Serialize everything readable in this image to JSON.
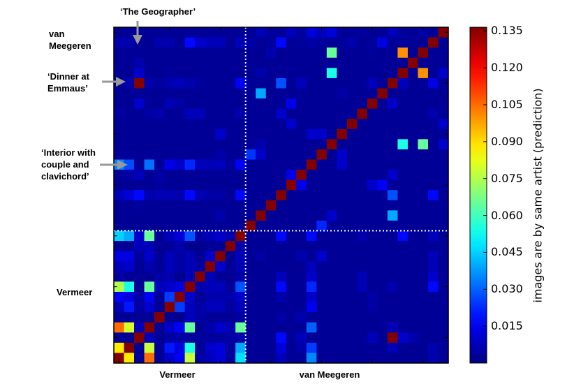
{
  "chart_data": {
    "type": "heatmap",
    "title": "",
    "colormap": "jet",
    "vmin": 0,
    "vmax": 0.1365,
    "grid": false,
    "vermeer_count": 13,
    "van_meegeren_count": 20,
    "row_group_labels": {
      "top": "van Meegeren",
      "bottom": "Vermeer"
    },
    "x_group_labels": [
      "Vermeer",
      "van Meegeren"
    ],
    "annotations": {
      "geographer": "‘The Geographer’",
      "dinner": "‘Dinner at Emmaus’",
      "interior": "‘Interior with couple and clavichord’"
    },
    "colorbar": {
      "label": "images are by same artist (prediction)",
      "ticks": [
        "0.015",
        "0.030",
        "0.045",
        "0.060",
        "0.075",
        "0.090",
        "0.105",
        "0.120",
        "0.135"
      ],
      "position": "right"
    },
    "values": [
      [
        0.003,
        0.003,
        0.003,
        0.003,
        0.003,
        0.003,
        0.003,
        0.003,
        0.003,
        0.003,
        0.003,
        0.003,
        0.003,
        0.003,
        0.007,
        0.004,
        0.003,
        0.008,
        0.004,
        0.012,
        0.008,
        0.012,
        0.003,
        0.003,
        0.004,
        0.003,
        0.003,
        0.008,
        0.004,
        0.003,
        0.005,
        0.003,
        0.136
      ],
      [
        0.006,
        0.006,
        0.003,
        0.003,
        0.006,
        0.006,
        0.003,
        0.018,
        0.01,
        0.008,
        0.008,
        0.003,
        0.008,
        0.005,
        0.003,
        0.004,
        0.018,
        0.003,
        0.004,
        0.005,
        0.004,
        0.003,
        0.004,
        0.006,
        0.003,
        0.004,
        0.013,
        0.003,
        0.004,
        0.003,
        0.003,
        0.136,
        0.003
      ],
      [
        0.003,
        0.003,
        0.003,
        0.003,
        0.003,
        0.003,
        0.003,
        0.003,
        0.003,
        0.003,
        0.003,
        0.003,
        0.003,
        0.003,
        0.003,
        0.006,
        0.003,
        0.003,
        0.003,
        0.003,
        0.003,
        0.065,
        0.003,
        0.003,
        0.003,
        0.004,
        0.003,
        0.003,
        0.1,
        0.003,
        0.136,
        0.003,
        0.003
      ],
      [
        0.003,
        0.003,
        0.006,
        0.003,
        0.003,
        0.003,
        0.003,
        0.003,
        0.003,
        0.003,
        0.003,
        0.003,
        0.003,
        0.003,
        0.003,
        0.003,
        0.003,
        0.003,
        0.003,
        0.003,
        0.003,
        0.003,
        0.003,
        0.003,
        0.003,
        0.003,
        0.003,
        0.003,
        0.003,
        0.136,
        0.003,
        0.003,
        0.003
      ],
      [
        0.003,
        0.003,
        0.01,
        0.003,
        0.003,
        0.004,
        0.003,
        0.003,
        0.003,
        0.003,
        0.003,
        0.003,
        0.003,
        0.003,
        0.006,
        0.003,
        0.003,
        0.003,
        0.003,
        0.003,
        0.003,
        0.055,
        0.003,
        0.003,
        0.003,
        0.003,
        0.003,
        0.003,
        0.136,
        0.003,
        0.1,
        0.003,
        0.01
      ],
      [
        0.003,
        0.006,
        0.136,
        0.006,
        0.004,
        0.006,
        0.008,
        0.006,
        0.004,
        0.003,
        0.003,
        0.003,
        0.016,
        0.003,
        0.003,
        0.003,
        0.028,
        0.003,
        0.008,
        0.003,
        0.003,
        0.003,
        0.003,
        0.003,
        0.003,
        0.008,
        0.003,
        0.136,
        0.008,
        0.003,
        0.003,
        0.013,
        0.003
      ],
      [
        0.003,
        0.003,
        0.003,
        0.003,
        0.003,
        0.003,
        0.003,
        0.003,
        0.003,
        0.003,
        0.003,
        0.003,
        0.003,
        0.003,
        0.04,
        0.003,
        0.003,
        0.003,
        0.003,
        0.003,
        0.003,
        0.003,
        0.005,
        0.003,
        0.003,
        0.003,
        0.136,
        0.003,
        0.003,
        0.003,
        0.003,
        0.003,
        0.003
      ],
      [
        0.003,
        0.003,
        0.01,
        0.003,
        0.003,
        0.007,
        0.005,
        0.003,
        0.003,
        0.003,
        0.003,
        0.003,
        0.003,
        0.003,
        0.003,
        0.003,
        0.003,
        0.014,
        0.003,
        0.003,
        0.003,
        0.003,
        0.003,
        0.003,
        0.003,
        0.136,
        0.003,
        0.01,
        0.003,
        0.003,
        0.003,
        0.003,
        0.003
      ],
      [
        0.005,
        0.003,
        0.003,
        0.005,
        0.006,
        0.003,
        0.003,
        0.008,
        0.008,
        0.003,
        0.003,
        0.003,
        0.006,
        0.003,
        0.003,
        0.003,
        0.01,
        0.003,
        0.003,
        0.003,
        0.003,
        0.003,
        0.003,
        0.003,
        0.136,
        0.003,
        0.003,
        0.003,
        0.003,
        0.003,
        0.003,
        0.006,
        0.003
      ],
      [
        0.003,
        0.003,
        0.003,
        0.003,
        0.003,
        0.003,
        0.003,
        0.003,
        0.003,
        0.003,
        0.003,
        0.003,
        0.003,
        0.003,
        0.003,
        0.003,
        0.003,
        0.01,
        0.003,
        0.003,
        0.003,
        0.003,
        0.003,
        0.136,
        0.003,
        0.003,
        0.003,
        0.003,
        0.003,
        0.003,
        0.003,
        0.003,
        0.01
      ],
      [
        0.003,
        0.003,
        0.003,
        0.003,
        0.003,
        0.003,
        0.003,
        0.003,
        0.003,
        0.003,
        0.01,
        0.003,
        0.003,
        0.003,
        0.003,
        0.003,
        0.003,
        0.003,
        0.003,
        0.01,
        0.01,
        0.003,
        0.136,
        0.003,
        0.003,
        0.003,
        0.003,
        0.003,
        0.003,
        0.003,
        0.003,
        0.003,
        0.003
      ],
      [
        0.003,
        0.003,
        0.003,
        0.003,
        0.003,
        0.003,
        0.003,
        0.003,
        0.003,
        0.003,
        0.003,
        0.003,
        0.003,
        0.003,
        0.006,
        0.003,
        0.003,
        0.003,
        0.003,
        0.003,
        0.003,
        0.136,
        0.003,
        0.003,
        0.003,
        0.003,
        0.003,
        0.003,
        0.055,
        0.003,
        0.065,
        0.003,
        0.01
      ],
      [
        0.003,
        0.003,
        0.003,
        0.003,
        0.003,
        0.003,
        0.003,
        0.003,
        0.003,
        0.003,
        0.005,
        0.003,
        0.003,
        0.024,
        0.01,
        0.003,
        0.003,
        0.003,
        0.003,
        0.003,
        0.136,
        0.003,
        0.01,
        0.003,
        0.003,
        0.003,
        0.003,
        0.003,
        0.003,
        0.003,
        0.003,
        0.003,
        0.003
      ],
      [
        0.035,
        0.027,
        0.003,
        0.032,
        0.003,
        0.014,
        0.01,
        0.022,
        0.008,
        0.007,
        0.008,
        0.004,
        0.016,
        0.003,
        0.003,
        0.003,
        0.003,
        0.003,
        0.003,
        0.136,
        0.003,
        0.003,
        0.01,
        0.003,
        0.003,
        0.003,
        0.003,
        0.003,
        0.003,
        0.003,
        0.003,
        0.003,
        0.003
      ],
      [
        0.003,
        0.005,
        0.008,
        0.003,
        0.005,
        0.003,
        0.003,
        0.003,
        0.003,
        0.003,
        0.003,
        0.003,
        0.003,
        0.003,
        0.003,
        0.003,
        0.003,
        0.014,
        0.136,
        0.003,
        0.003,
        0.003,
        0.003,
        0.003,
        0.003,
        0.003,
        0.003,
        0.01,
        0.003,
        0.003,
        0.003,
        0.003,
        0.003
      ],
      [
        0.003,
        0.003,
        0.003,
        0.003,
        0.004,
        0.003,
        0.003,
        0.003,
        0.003,
        0.003,
        0.003,
        0.003,
        0.003,
        0.003,
        0.003,
        0.003,
        0.003,
        0.136,
        0.014,
        0.003,
        0.003,
        0.003,
        0.003,
        0.003,
        0.003,
        0.01,
        0.016,
        0.003,
        0.003,
        0.003,
        0.003,
        0.003,
        0.003
      ],
      [
        0.008,
        0.012,
        0.018,
        0.006,
        0.007,
        0.007,
        0.006,
        0.018,
        0.007,
        0.005,
        0.005,
        0.003,
        0.018,
        0.003,
        0.003,
        0.003,
        0.136,
        0.003,
        0.003,
        0.003,
        0.003,
        0.003,
        0.003,
        0.003,
        0.003,
        0.003,
        0.003,
        0.028,
        0.003,
        0.003,
        0.003,
        0.018,
        0.003
      ],
      [
        0.003,
        0.003,
        0.004,
        0.003,
        0.003,
        0.003,
        0.003,
        0.003,
        0.003,
        0.003,
        0.003,
        0.003,
        0.003,
        0.003,
        0.003,
        0.136,
        0.003,
        0.003,
        0.003,
        0.003,
        0.003,
        0.003,
        0.003,
        0.003,
        0.003,
        0.003,
        0.003,
        0.003,
        0.003,
        0.003,
        0.003,
        0.003,
        0.003
      ],
      [
        0.003,
        0.003,
        0.003,
        0.003,
        0.003,
        0.003,
        0.003,
        0.003,
        0.003,
        0.003,
        0.006,
        0.003,
        0.003,
        0.003,
        0.136,
        0.003,
        0.003,
        0.003,
        0.003,
        0.003,
        0.003,
        0.01,
        0.003,
        0.003,
        0.003,
        0.003,
        0.003,
        0.04,
        0.003,
        0.003,
        0.003,
        0.003,
        0.003
      ],
      [
        0.003,
        0.003,
        0.003,
        0.003,
        0.003,
        0.003,
        0.003,
        0.003,
        0.003,
        0.003,
        0.003,
        0.003,
        0.003,
        0.136,
        0.003,
        0.003,
        0.003,
        0.003,
        0.003,
        0.003,
        0.022,
        0.003,
        0.003,
        0.003,
        0.003,
        0.003,
        0.003,
        0.003,
        0.003,
        0.003,
        0.003,
        0.003,
        0.003
      ],
      [
        0.045,
        0.04,
        0.01,
        0.065,
        0.003,
        0.008,
        0.012,
        0.028,
        0.005,
        0.008,
        0.01,
        0.006,
        0.136,
        0.003,
        0.003,
        0.003,
        0.018,
        0.003,
        0.003,
        0.018,
        0.003,
        0.003,
        0.003,
        0.003,
        0.006,
        0.003,
        0.003,
        0.003,
        0.018,
        0.003,
        0.003,
        0.008,
        0.003
      ],
      [
        0.003,
        0.003,
        0.008,
        0.008,
        0.003,
        0.003,
        0.006,
        0.002,
        0.002,
        0.003,
        0.003,
        0.136,
        0.006,
        0.003,
        0.003,
        0.003,
        0.003,
        0.003,
        0.003,
        0.003,
        0.003,
        0.003,
        0.003,
        0.003,
        0.003,
        0.003,
        0.003,
        0.003,
        0.003,
        0.003,
        0.003,
        0.003,
        0.003
      ],
      [
        0.013,
        0.013,
        0.004,
        0.01,
        0.003,
        0.008,
        0.005,
        0.007,
        0.003,
        0.01,
        0.136,
        0.003,
        0.008,
        0.003,
        0.005,
        0.003,
        0.003,
        0.003,
        0.006,
        0.003,
        0.01,
        0.003,
        0.003,
        0.003,
        0.003,
        0.003,
        0.003,
        0.003,
        0.003,
        0.003,
        0.003,
        0.008,
        0.003
      ],
      [
        0.008,
        0.01,
        0.003,
        0.006,
        0.003,
        0.008,
        0.005,
        0.007,
        0.005,
        0.136,
        0.01,
        0.003,
        0.007,
        0.003,
        0.003,
        0.003,
        0.003,
        0.003,
        0.003,
        0.008,
        0.003,
        0.003,
        0.003,
        0.003,
        0.003,
        0.003,
        0.003,
        0.003,
        0.003,
        0.003,
        0.003,
        0.007,
        0.003
      ],
      [
        0.005,
        0.003,
        0.003,
        0.003,
        0.005,
        0.006,
        0.002,
        0.007,
        0.136,
        0.007,
        0.003,
        0.003,
        0.005,
        0.003,
        0.003,
        0.003,
        0.008,
        0.003,
        0.003,
        0.01,
        0.003,
        0.003,
        0.003,
        0.003,
        0.007,
        0.003,
        0.003,
        0.003,
        0.003,
        0.003,
        0.003,
        0.01,
        0.003
      ],
      [
        0.075,
        0.055,
        0.003,
        0.065,
        0.008,
        0.01,
        0.012,
        0.136,
        0.006,
        0.008,
        0.008,
        0.003,
        0.028,
        0.003,
        0.003,
        0.003,
        0.018,
        0.003,
        0.003,
        0.022,
        0.003,
        0.003,
        0.003,
        0.003,
        0.007,
        0.003,
        0.003,
        0.006,
        0.003,
        0.003,
        0.003,
        0.018,
        0.003
      ],
      [
        0.016,
        0.013,
        0.005,
        0.016,
        0.003,
        0.025,
        0.136,
        0.01,
        0.003,
        0.006,
        0.006,
        0.006,
        0.01,
        0.003,
        0.003,
        0.003,
        0.006,
        0.003,
        0.003,
        0.01,
        0.003,
        0.003,
        0.003,
        0.003,
        0.003,
        0.005,
        0.003,
        0.003,
        0.003,
        0.003,
        0.003,
        0.003,
        0.003
      ],
      [
        0.007,
        0.02,
        0.005,
        0.01,
        0.003,
        0.136,
        0.025,
        0.008,
        0.005,
        0.008,
        0.008,
        0.004,
        0.008,
        0.003,
        0.003,
        0.003,
        0.003,
        0.003,
        0.003,
        0.015,
        0.003,
        0.003,
        0.003,
        0.003,
        0.003,
        0.005,
        0.003,
        0.003,
        0.003,
        0.003,
        0.003,
        0.003,
        0.003
      ],
      [
        0.003,
        0.003,
        0.003,
        0.003,
        0.136,
        0.003,
        0.002,
        0.008,
        0.005,
        0.003,
        0.003,
        0.003,
        0.005,
        0.003,
        0.003,
        0.003,
        0.005,
        0.003,
        0.006,
        0.003,
        0.003,
        0.003,
        0.003,
        0.003,
        0.003,
        0.003,
        0.003,
        0.003,
        0.003,
        0.003,
        0.003,
        0.003,
        0.003
      ],
      [
        0.105,
        0.08,
        0.008,
        0.136,
        0.003,
        0.01,
        0.016,
        0.065,
        0.003,
        0.006,
        0.01,
        0.007,
        0.065,
        0.003,
        0.003,
        0.003,
        0.003,
        0.003,
        0.003,
        0.03,
        0.003,
        0.003,
        0.003,
        0.003,
        0.003,
        0.003,
        0.003,
        0.007,
        0.003,
        0.003,
        0.003,
        0.003,
        0.003
      ],
      [
        0.003,
        0.003,
        0.136,
        0.008,
        0.003,
        0.005,
        0.005,
        0.004,
        0.004,
        0.004,
        0.004,
        0.005,
        0.006,
        0.003,
        0.003,
        0.003,
        0.018,
        0.003,
        0.008,
        0.003,
        0.003,
        0.003,
        0.003,
        0.003,
        0.003,
        0.008,
        0.003,
        0.136,
        0.01,
        0.006,
        0.003,
        0.003,
        0.003
      ],
      [
        0.088,
        0.136,
        0.003,
        0.078,
        0.003,
        0.02,
        0.013,
        0.055,
        0.003,
        0.01,
        0.012,
        0.004,
        0.04,
        0.003,
        0.003,
        0.003,
        0.012,
        0.003,
        0.005,
        0.025,
        0.003,
        0.003,
        0.003,
        0.003,
        0.003,
        0.003,
        0.003,
        0.008,
        0.003,
        0.003,
        0.003,
        0.006,
        0.003
      ],
      [
        0.136,
        0.088,
        0.003,
        0.105,
        0.003,
        0.01,
        0.016,
        0.078,
        0.005,
        0.008,
        0.012,
        0.004,
        0.047,
        0.003,
        0.003,
        0.003,
        0.008,
        0.003,
        0.003,
        0.035,
        0.003,
        0.003,
        0.003,
        0.003,
        0.003,
        0.003,
        0.003,
        0.003,
        0.003,
        0.003,
        0.003,
        0.006,
        0.003
      ]
    ]
  }
}
